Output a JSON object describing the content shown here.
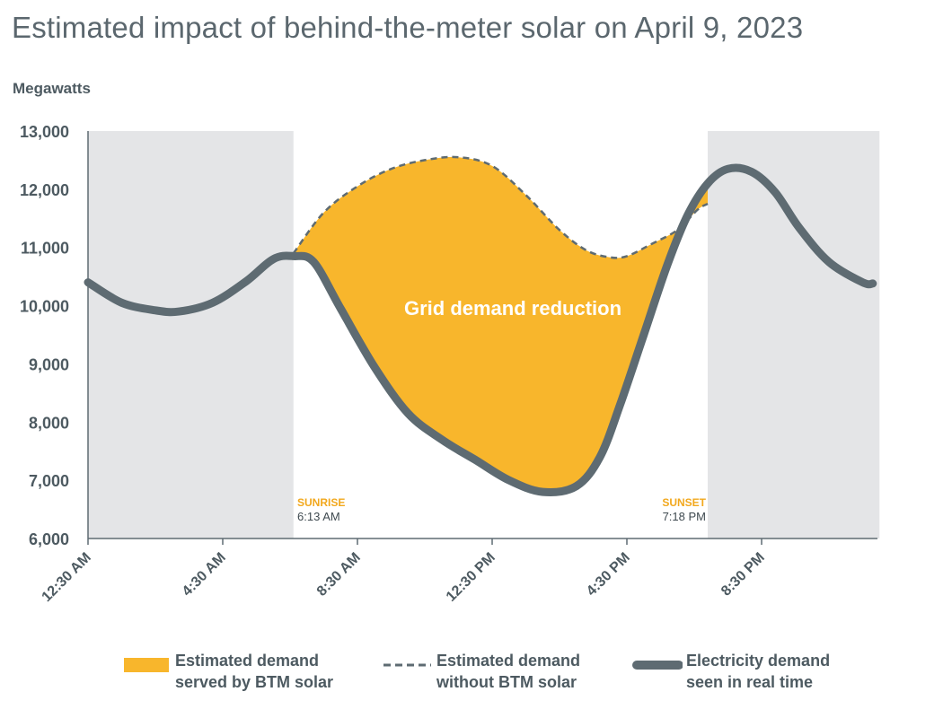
{
  "title": "Estimated impact of behind-the-meter solar on April 9, 2023",
  "y_axis_units": "Megawatts",
  "annotation_center": "Grid demand reduction",
  "sunrise": {
    "label": "SUNRISE",
    "time": "6:13 AM"
  },
  "sunset": {
    "label": "SUNSET",
    "time": "7:18 PM"
  },
  "legend": {
    "solar": {
      "line1": "Estimated demand",
      "line2": "served by BTM solar"
    },
    "without": {
      "line1": "Estimated demand",
      "line2": "without BTM solar"
    },
    "realtime": {
      "line1": "Electricity demand",
      "line2": "seen in real time"
    }
  },
  "colors": {
    "solar_fill": "#f8b62c",
    "demand_line": "#5e6b72",
    "night_shade": "#e4e5e7",
    "sun_label": "#f2a81d",
    "text": "#4d5a61"
  },
  "chart_data": {
    "type": "area",
    "ylabel": "Megawatts",
    "ylim": [
      6000,
      13000
    ],
    "yticks": [
      "6,000",
      "7,000",
      "8,000",
      "9,000",
      "10,000",
      "11,000",
      "12,000",
      "13,000"
    ],
    "ytick_values": [
      6000,
      7000,
      8000,
      9000,
      10000,
      11000,
      12000,
      13000
    ],
    "xlim_hours": [
      0.5,
      24.0
    ],
    "xticks": [
      "12:30 AM",
      "4:30 AM",
      "8:30 AM",
      "12:30 PM",
      "4:30 PM",
      "8:30 PM"
    ],
    "xtick_hours": [
      0.5,
      4.5,
      8.5,
      12.5,
      16.5,
      20.5
    ],
    "night_shading_hours": [
      [
        0.5,
        6.6
      ],
      [
        18.9,
        24.0
      ]
    ],
    "series": [
      {
        "name": "Electricity demand seen in real time",
        "style": "solid",
        "x_hours": [
          0.5,
          1.5,
          2.5,
          3.2,
          4.2,
          5.2,
          6.0,
          6.6,
          7.2,
          8.0,
          9.0,
          10.0,
          11.0,
          12.0,
          13.0,
          14.0,
          15.0,
          15.7,
          16.3,
          17.0,
          17.7,
          18.3,
          18.9,
          19.5,
          20.2,
          20.9,
          21.6,
          22.5,
          23.5,
          23.8
        ],
        "values": [
          10400,
          10050,
          9920,
          9900,
          10050,
          10420,
          10800,
          10850,
          10750,
          9950,
          8950,
          8150,
          7700,
          7350,
          7000,
          6800,
          6900,
          7400,
          8300,
          9500,
          10700,
          11550,
          12100,
          12350,
          12300,
          11950,
          11350,
          10750,
          10400,
          10380
        ]
      },
      {
        "name": "Estimated demand without BTM solar",
        "style": "dashed",
        "x_hours": [
          6.6,
          7.5,
          8.5,
          9.5,
          10.5,
          11.5,
          12.5,
          13.5,
          14.5,
          15.3,
          16.0,
          16.5,
          17.2,
          18.0,
          18.6,
          18.9
        ],
        "values": [
          10900,
          11600,
          12050,
          12350,
          12500,
          12550,
          12400,
          11900,
          11300,
          10950,
          10830,
          10850,
          11050,
          11300,
          11650,
          11750
        ]
      },
      {
        "name": "Estimated demand served by BTM solar",
        "style": "fill_between",
        "range_hours": [
          6.6,
          18.9
        ]
      }
    ]
  }
}
